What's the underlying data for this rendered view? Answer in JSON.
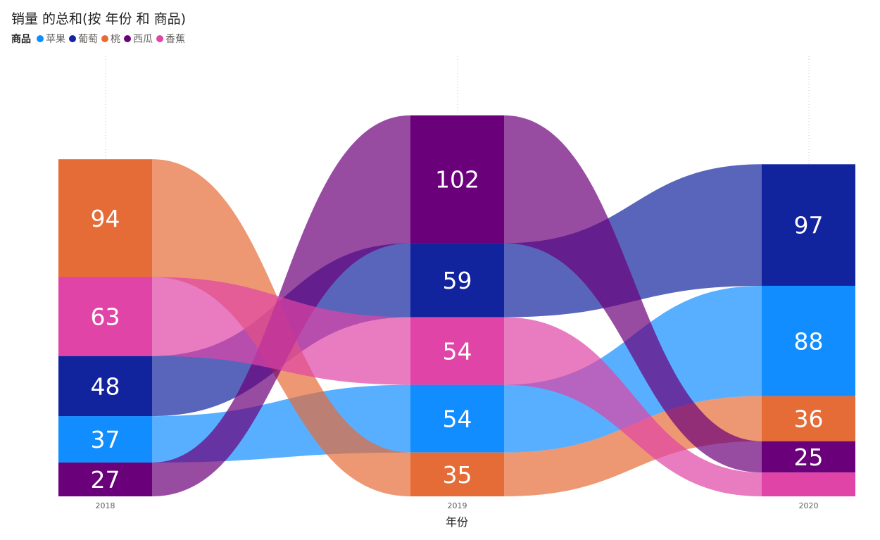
{
  "chart_data": {
    "type": "ribbon",
    "title": "销量 的总和(按 年份 和 商品)",
    "legend_title": "商品",
    "legend_position": "top-left",
    "xlabel": "年份",
    "categories": [
      "2018",
      "2019",
      "2020"
    ],
    "series": [
      {
        "name": "苹果",
        "color": "#118dff",
        "values": [
          37,
          54,
          88
        ]
      },
      {
        "name": "葡萄",
        "color": "#12239e",
        "values": [
          48,
          59,
          97
        ]
      },
      {
        "name": "桃",
        "color": "#e66c37",
        "values": [
          94,
          35,
          36
        ]
      },
      {
        "name": "西瓜",
        "color": "#6b007b",
        "values": [
          27,
          102,
          25
        ]
      },
      {
        "name": "香蕉",
        "color": "#e044a7",
        "values": [
          63,
          54,
          19
        ]
      }
    ],
    "visible_labels": [
      "94",
      "63",
      "48",
      "37",
      "27",
      "102",
      "59",
      "54",
      "54",
      "35",
      "97",
      "88",
      "36",
      "25"
    ],
    "label_color": "#ffffff"
  }
}
